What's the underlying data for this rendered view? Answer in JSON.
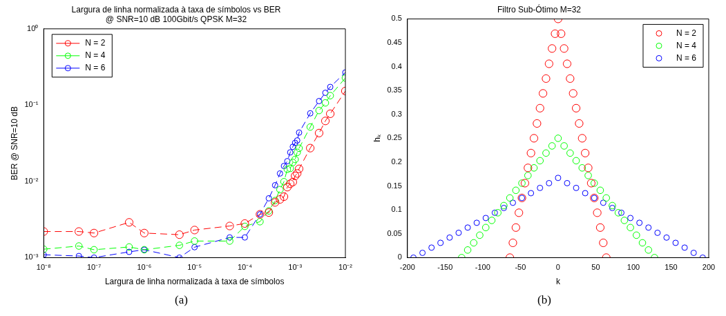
{
  "chart_data": [
    {
      "type": "line",
      "title": "Largura de linha normalizada à taxa de símbolos vs BER",
      "subtitle": "@ SNR=10 dB 100Gbit/s QPSK M=32",
      "xlabel": "Largura de linha normalizada à taxa de símbolos",
      "ylabel": "BER @ SNR=10 dB",
      "annotations": [
        "(a)"
      ],
      "x": [
        1e-08,
        5e-08,
        1e-07,
        5e-07,
        1e-06,
        5e-06,
        1e-05,
        5e-05,
        0.0001,
        0.0002,
        0.0003,
        0.0004,
        0.0005,
        0.0006,
        0.0007,
        0.0008,
        0.0009,
        0.001,
        0.0011,
        0.0012,
        0.002,
        0.003,
        0.004,
        0.005,
        0.01
      ],
      "series": [
        {
          "name": "N = 2",
          "color": "#ff0000",
          "values": [
            0.0022,
            0.0022,
            0.0021,
            0.0029,
            0.0021,
            0.002,
            0.0023,
            0.0026,
            0.0028,
            0.0037,
            0.0039,
            0.0053,
            0.0058,
            0.0063,
            0.0084,
            0.0093,
            0.0098,
            0.0118,
            0.0127,
            0.0146,
            0.0273,
            0.043,
            0.062,
            0.077,
            0.153
          ]
        },
        {
          "name": "N = 4",
          "color": "#00ff00",
          "values": [
            0.00129,
            0.00142,
            0.00127,
            0.00138,
            0.00127,
            0.00145,
            0.00165,
            0.00165,
            0.00257,
            0.00296,
            0.0041,
            0.0056,
            0.0078,
            0.0099,
            0.0144,
            0.0148,
            0.0177,
            0.0194,
            0.024,
            0.0272,
            0.0516,
            0.085,
            0.107,
            0.133,
            0.227
          ]
        },
        {
          "name": "N = 6",
          "color": "#0000ff",
          "values": [
            0.00109,
            0.00105,
            0.001,
            0.00119,
            0.00127,
            0.001,
            0.00137,
            0.00184,
            0.00184,
            0.0037,
            0.006,
            0.0089,
            0.0127,
            0.0159,
            0.0184,
            0.024,
            0.0284,
            0.032,
            0.0344,
            0.0436,
            0.078,
            0.113,
            0.145,
            0.173,
            0.268
          ]
        }
      ],
      "log": "xy",
      "xlim": [
        1e-08,
        0.01
      ],
      "ylim": [
        0.001,
        1
      ],
      "xticks": [
        {
          "value": 1e-08,
          "label": "10⁻⁸"
        },
        {
          "value": 1e-07,
          "label": "10⁻⁷"
        },
        {
          "value": 1e-06,
          "label": "10⁻⁶"
        },
        {
          "value": 1e-05,
          "label": "10⁻⁵"
        },
        {
          "value": 0.0001,
          "label": "10⁻⁴"
        },
        {
          "value": 0.001,
          "label": "10⁻³"
        },
        {
          "value": 0.01,
          "label": "10⁻²"
        }
      ],
      "yticks": [
        {
          "value": 0.001,
          "label": "10⁻³"
        },
        {
          "value": 0.01,
          "label": "10⁻²"
        },
        {
          "value": 0.1,
          "label": "10⁻¹"
        },
        {
          "value": 1,
          "label": "10⁰"
        }
      ],
      "marker": "circle",
      "line_style": "dashed",
      "legend": "top left"
    },
    {
      "type": "scatter",
      "title": "Filtro Sub-Ótimo M=32",
      "xlabel": "k",
      "ylabel": "hₖ",
      "annotations": [
        "(b)"
      ],
      "series": [
        {
          "name": "N = 2",
          "color": "#ff0000",
          "x": [
            -64,
            -60,
            -56,
            -52,
            -48,
            -44,
            -40,
            -36,
            -32,
            -28,
            -24,
            -20,
            -16,
            -12,
            -8,
            -4,
            0,
            4,
            8,
            12,
            16,
            20,
            24,
            28,
            32,
            36,
            40,
            44,
            48,
            52,
            56,
            60,
            64
          ],
          "values": [
            0,
            0.031,
            0.063,
            0.094,
            0.125,
            0.156,
            0.188,
            0.219,
            0.25,
            0.281,
            0.313,
            0.344,
            0.375,
            0.406,
            0.438,
            0.469,
            0.5,
            0.469,
            0.438,
            0.406,
            0.375,
            0.344,
            0.313,
            0.281,
            0.25,
            0.219,
            0.188,
            0.156,
            0.125,
            0.094,
            0.063,
            0.031,
            0
          ]
        },
        {
          "name": "N = 4",
          "color": "#00ff00",
          "x": [
            -128,
            -120,
            -112,
            -104,
            -96,
            -88,
            -80,
            -72,
            -64,
            -56,
            -48,
            -40,
            -32,
            -24,
            -16,
            -8,
            0,
            8,
            16,
            24,
            32,
            40,
            48,
            56,
            64,
            72,
            80,
            88,
            96,
            104,
            112,
            120,
            128
          ],
          "values": [
            0,
            0.016,
            0.031,
            0.047,
            0.063,
            0.078,
            0.094,
            0.109,
            0.125,
            0.141,
            0.156,
            0.172,
            0.188,
            0.203,
            0.219,
            0.234,
            0.25,
            0.234,
            0.219,
            0.203,
            0.188,
            0.172,
            0.156,
            0.141,
            0.125,
            0.109,
            0.094,
            0.078,
            0.063,
            0.047,
            0.031,
            0.016,
            0
          ]
        },
        {
          "name": "N = 6",
          "color": "#0000ff",
          "x": [
            -192,
            -180,
            -168,
            -156,
            -144,
            -132,
            -120,
            -108,
            -96,
            -84,
            -72,
            -60,
            -48,
            -36,
            -24,
            -12,
            0,
            12,
            24,
            36,
            48,
            60,
            72,
            84,
            96,
            108,
            120,
            132,
            144,
            156,
            168,
            180,
            192
          ],
          "values": [
            0,
            0.01,
            0.021,
            0.031,
            0.042,
            0.052,
            0.063,
            0.073,
            0.083,
            0.094,
            0.104,
            0.115,
            0.125,
            0.135,
            0.146,
            0.156,
            0.167,
            0.156,
            0.146,
            0.135,
            0.125,
            0.115,
            0.104,
            0.094,
            0.083,
            0.073,
            0.063,
            0.052,
            0.042,
            0.031,
            0.021,
            0.01,
            0
          ]
        }
      ],
      "xlim": [
        -200,
        200
      ],
      "ylim": [
        0,
        0.5
      ],
      "xticks": [
        -200,
        -150,
        -100,
        -50,
        0,
        50,
        100,
        150,
        200
      ],
      "yticks": [
        0,
        0.05,
        0.1,
        0.15,
        0.2,
        0.25,
        0.3,
        0.35,
        0.4,
        0.45,
        0.5
      ],
      "marker": "circle",
      "legend": "top right"
    }
  ]
}
